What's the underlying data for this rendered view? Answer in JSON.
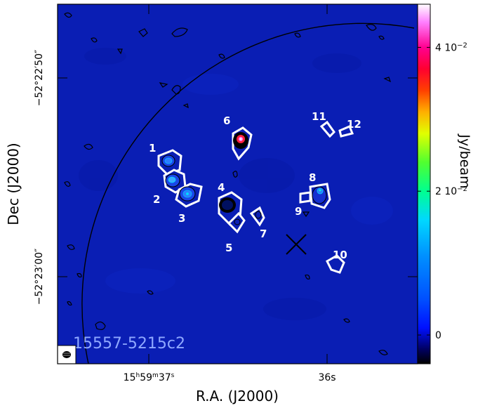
{
  "chart_data": {
    "type": "heatmap",
    "image_label": "15557-5215c2",
    "xlabel": "R.A. (J2000)",
    "ylabel": "Dec (J2000)",
    "x_ticks": [
      {
        "label_html": "15<tspan baseline-shift='super' font-size='9'>h</tspan>59<tspan baseline-shift='super' font-size='9'>m</tspan>37<tspan baseline-shift='super' font-size='9'>s</tspan>",
        "label": "15h59m37s",
        "ra_sec": 37.0
      },
      {
        "label": "36s",
        "ra_sec": 36.0
      }
    ],
    "y_ticks": [
      {
        "label": "−52°22′50″",
        "dec_arcsec": -10
      },
      {
        "label": "−52°23′00″",
        "dec_arcsec": -20
      }
    ],
    "colorbar": {
      "label": "Jy/beam",
      "range": [
        -0.004,
        0.046
      ],
      "ticks": [
        {
          "label": "0",
          "value": 0.0
        },
        {
          "label": "2 10",
          "exp": "−2",
          "value": 0.02
        },
        {
          "label": "4 10",
          "exp": "−2",
          "value": 0.04
        }
      ],
      "colors": [
        "#000000",
        "#0000ff",
        "#00bfff",
        "#00ff80",
        "#ffff00",
        "#ff8000",
        "#ff0000",
        "#ff33aa",
        "#ffffff"
      ]
    },
    "sources": [
      {
        "id": "1"
      },
      {
        "id": "2"
      },
      {
        "id": "3"
      },
      {
        "id": "4"
      },
      {
        "id": "5"
      },
      {
        "id": "6"
      },
      {
        "id": "7"
      },
      {
        "id": "8"
      },
      {
        "id": "9"
      },
      {
        "id": "10"
      },
      {
        "id": "11"
      },
      {
        "id": "12"
      }
    ],
    "background_color": "#0a1eb4",
    "contour_color": "#000000",
    "outline_color": "#ffffff"
  }
}
